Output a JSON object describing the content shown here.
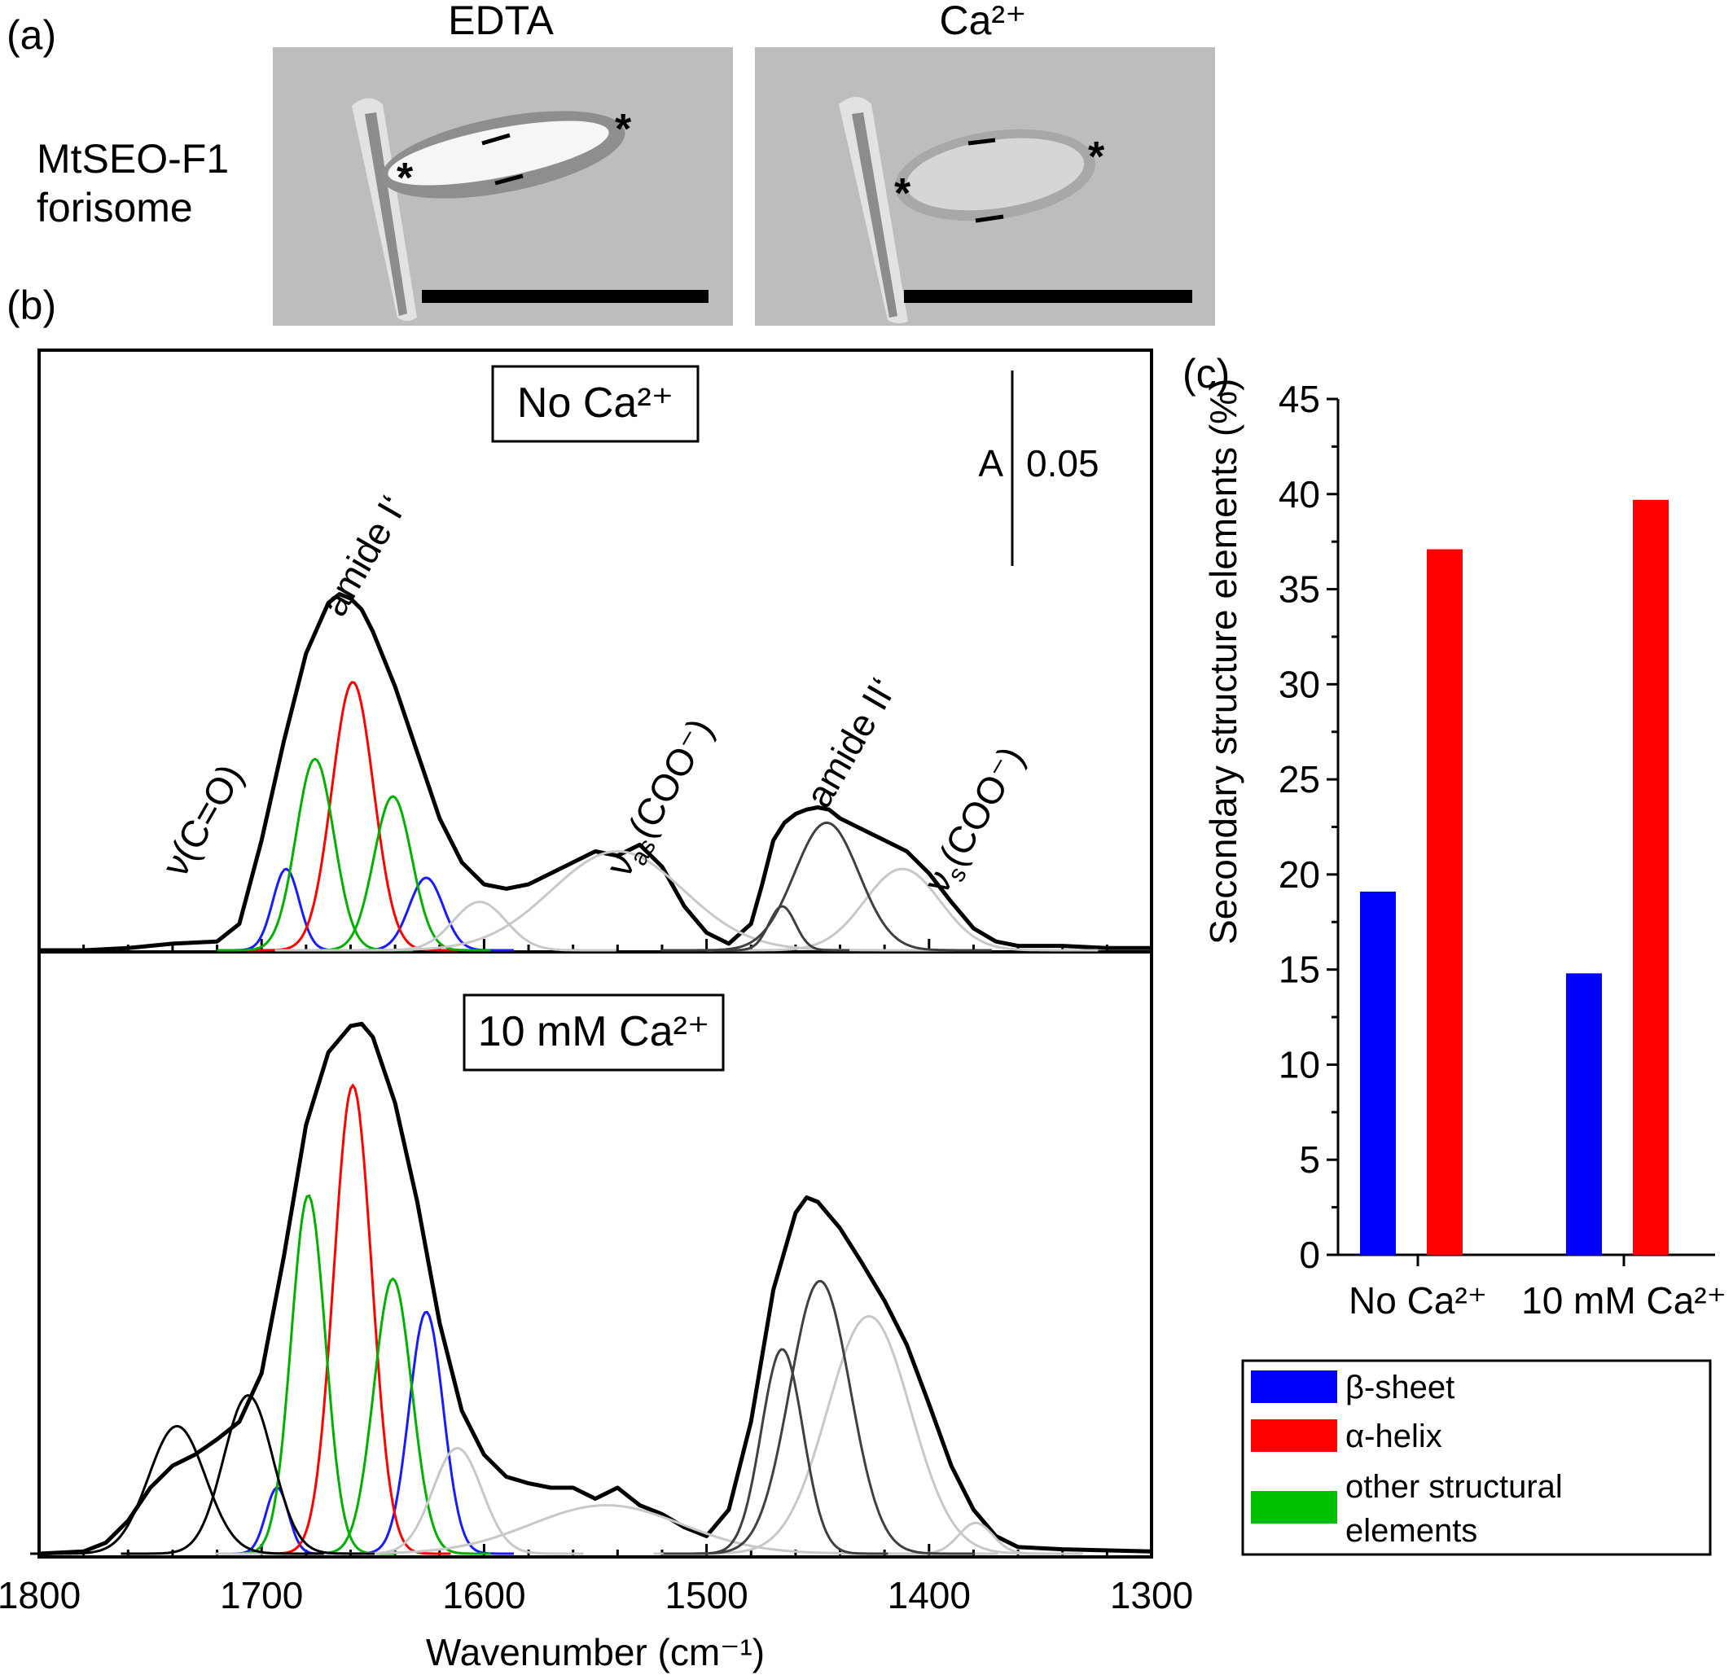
{
  "panel_a": {
    "label": "(a)",
    "row_label": [
      "MtSEO-F1",
      "forisome"
    ],
    "columns": [
      {
        "title": "EDTA",
        "tip_marker": "*"
      },
      {
        "title": "Ca²⁺",
        "tip_marker": "*"
      }
    ],
    "background_color": "#bfbfbf"
  },
  "panel_b": {
    "label": "(b)",
    "scale_bar_label": "A",
    "scale_bar_value": "0.05",
    "annotations": {
      "vco": "ν(C=O)",
      "amide1": "amide I‘",
      "vas": "ν",
      "vas_sub": "as",
      "vas_group": "(COO⁻)",
      "amide2": "amide II‘",
      "vs": "ν",
      "vs_sub": "s",
      "vs_group": "(COO⁻)"
    }
  },
  "panel_c": {
    "label": "(c)"
  },
  "chart_data": [
    {
      "type": "line",
      "title": "No Ca²⁺",
      "xlabel": "Wavenumber (cm⁻¹)",
      "xlim": [
        1800,
        1300
      ],
      "x_ticks": [
        1800,
        1700,
        1600,
        1500,
        1400,
        1300
      ],
      "series": [
        {
          "color": "#000000",
          "role": "measured spectrum",
          "x": [
            1800,
            1780,
            1760,
            1740,
            1720,
            1710,
            1700,
            1690,
            1680,
            1670,
            1665,
            1660,
            1655,
            1650,
            1640,
            1630,
            1620,
            1610,
            1600,
            1590,
            1580,
            1570,
            1560,
            1550,
            1540,
            1530,
            1520,
            1510,
            1500,
            1490,
            1480,
            1475,
            1470,
            1465,
            1460,
            1455,
            1450,
            1445,
            1440,
            1430,
            1420,
            1410,
            1400,
            1390,
            1380,
            1370,
            1360,
            1340,
            1320,
            1300
          ],
          "y": [
            0,
            0,
            0.001,
            0.003,
            0.004,
            0.012,
            0.05,
            0.095,
            0.135,
            0.158,
            0.162,
            0.16,
            0.155,
            0.145,
            0.12,
            0.09,
            0.06,
            0.04,
            0.03,
            0.028,
            0.03,
            0.035,
            0.04,
            0.045,
            0.043,
            0.048,
            0.038,
            0.02,
            0.008,
            0.003,
            0.012,
            0.03,
            0.05,
            0.058,
            0.062,
            0.064,
            0.065,
            0.064,
            0.06,
            0.055,
            0.05,
            0.045,
            0.035,
            0.022,
            0.01,
            0.004,
            0.002,
            0.002,
            0.001,
            0.001
          ]
        },
        {
          "color": "#1a1aff",
          "role": "β-sheet component",
          "peaks": [
            {
              "center": 1689,
              "height": 0.037,
              "fwhm": 14
            },
            {
              "center": 1626,
              "height": 0.033,
              "fwhm": 18
            }
          ]
        },
        {
          "color": "#ff0000",
          "role": "α-helix component",
          "peaks": [
            {
              "center": 1659,
              "height": 0.122,
              "fwhm": 22
            }
          ]
        },
        {
          "color": "#00b000",
          "role": "other structural elements component",
          "peaks": [
            {
              "center": 1676,
              "height": 0.087,
              "fwhm": 20
            },
            {
              "center": 1641,
              "height": 0.07,
              "fwhm": 20
            }
          ]
        },
        {
          "color": "#c8c8c8",
          "role": "carboxylate components",
          "peaks": [
            {
              "center": 1602,
              "height": 0.022,
              "fwhm": 28
            },
            {
              "center": 1540,
              "height": 0.045,
              "fwhm": 70
            },
            {
              "center": 1412,
              "height": 0.037,
              "fwhm": 40
            }
          ]
        },
        {
          "color": "#404040",
          "role": "amide II‘ components",
          "peaks": [
            {
              "center": 1466,
              "height": 0.02,
              "fwhm": 14
            },
            {
              "center": 1446,
              "height": 0.058,
              "fwhm": 34
            }
          ]
        }
      ]
    },
    {
      "type": "line",
      "title": "10 mM Ca²⁺",
      "xlabel": "Wavenumber (cm⁻¹)",
      "xlim": [
        1800,
        1300
      ],
      "x_ticks": [
        1800,
        1700,
        1600,
        1500,
        1400,
        1300
      ],
      "series": [
        {
          "color": "#000000",
          "role": "measured spectrum",
          "x": [
            1800,
            1780,
            1770,
            1760,
            1750,
            1740,
            1730,
            1720,
            1710,
            1700,
            1690,
            1680,
            1670,
            1660,
            1655,
            1650,
            1640,
            1630,
            1620,
            1610,
            1600,
            1590,
            1580,
            1570,
            1560,
            1550,
            1540,
            1530,
            1520,
            1510,
            1500,
            1490,
            1480,
            1470,
            1460,
            1455,
            1450,
            1440,
            1430,
            1420,
            1410,
            1400,
            1390,
            1380,
            1370,
            1360,
            1340,
            1300
          ],
          "y": [
            0,
            0.001,
            0.005,
            0.015,
            0.03,
            0.04,
            0.045,
            0.052,
            0.06,
            0.082,
            0.135,
            0.195,
            0.228,
            0.24,
            0.241,
            0.235,
            0.205,
            0.16,
            0.105,
            0.065,
            0.045,
            0.035,
            0.032,
            0.03,
            0.03,
            0.025,
            0.03,
            0.022,
            0.018,
            0.012,
            0.008,
            0.02,
            0.06,
            0.12,
            0.155,
            0.162,
            0.16,
            0.148,
            0.132,
            0.115,
            0.095,
            0.068,
            0.04,
            0.02,
            0.008,
            0.003,
            0.002,
            0.001
          ]
        },
        {
          "color": "#1a1aff",
          "role": "β-sheet component",
          "peaks": [
            {
              "center": 1693,
              "height": 0.03,
              "fwhm": 12
            },
            {
              "center": 1626,
              "height": 0.11,
              "fwhm": 18
            }
          ]
        },
        {
          "color": "#ff0000",
          "role": "α-helix component",
          "peaks": [
            {
              "center": 1659,
              "height": 0.213,
              "fwhm": 20
            }
          ]
        },
        {
          "color": "#00b000",
          "role": "other structural elements component",
          "peaks": [
            {
              "center": 1679,
              "height": 0.163,
              "fwhm": 18
            },
            {
              "center": 1641,
              "height": 0.125,
              "fwhm": 20
            }
          ]
        },
        {
          "color": "#c8c8c8",
          "role": "carboxylate components",
          "peaks": [
            {
              "center": 1612,
              "height": 0.048,
              "fwhm": 26
            },
            {
              "center": 1545,
              "height": 0.022,
              "fwhm": 80
            },
            {
              "center": 1427,
              "height": 0.108,
              "fwhm": 44
            },
            {
              "center": 1379,
              "height": 0.014,
              "fwhm": 18
            }
          ]
        },
        {
          "color": "#000000",
          "role": "ester components",
          "peaks": [
            {
              "center": 1738,
              "height": 0.058,
              "fwhm": 30
            },
            {
              "center": 1706,
              "height": 0.072,
              "fwhm": 26
            }
          ]
        },
        {
          "color": "#404040",
          "role": "amide II‘ components",
          "peaks": [
            {
              "center": 1466,
              "height": 0.093,
              "fwhm": 22
            },
            {
              "center": 1449,
              "height": 0.124,
              "fwhm": 32
            }
          ]
        }
      ]
    },
    {
      "type": "bar",
      "ylabel": "Secondary structure elements (%)",
      "ylim": [
        0,
        45
      ],
      "y_ticks": [
        0,
        5,
        10,
        15,
        20,
        25,
        30,
        35,
        40,
        45
      ],
      "categories": [
        "No Ca²⁺",
        "10 mM Ca²⁺"
      ],
      "series": [
        {
          "name": "β-sheet",
          "color": "#0000ff",
          "values": [
            19.1,
            14.8
          ]
        },
        {
          "name": "α-helix",
          "color": "#ff0000",
          "values": [
            37.1,
            39.7
          ]
        }
      ],
      "legend": [
        {
          "label": "β-sheet",
          "color": "#0000ff"
        },
        {
          "label": "α-helix",
          "color": "#ff0000"
        },
        {
          "label": "other structural elements",
          "color": "#00c000"
        }
      ]
    }
  ]
}
